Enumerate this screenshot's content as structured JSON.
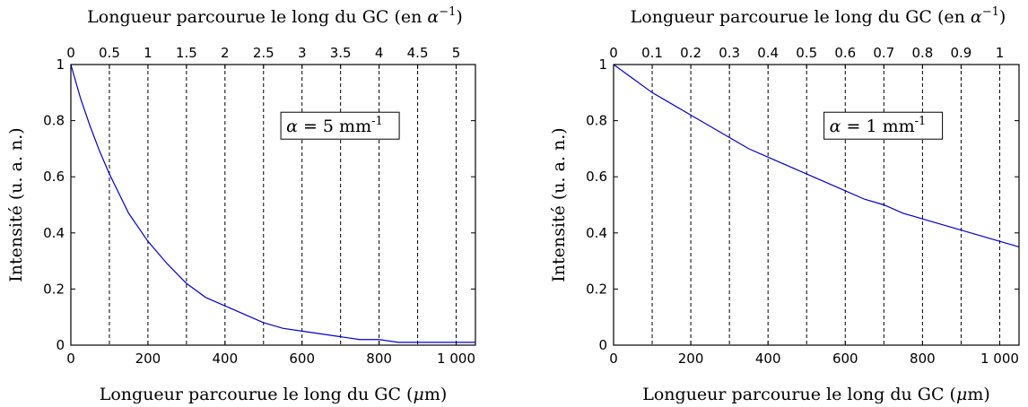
{
  "chart_data": [
    {
      "type": "line",
      "ylabel": "Intensité (u. a. n.)",
      "xlabel": "Longueur parcourue le long du GC (",
      "xlabel_symbol": "μ",
      "xlabel_unit": "m)",
      "x2label": "Longueur parcourue le long du GC (en ",
      "x2label_symbol": "α",
      "x2label_sup": "−1",
      "x2label_end": ")",
      "xlim": [
        0,
        1050
      ],
      "ylim": [
        0,
        1
      ],
      "xticks": [
        0,
        200,
        400,
        600,
        800,
        1000
      ],
      "xtick_labels": [
        "0",
        "200",
        "400",
        "600",
        "800",
        "1 000"
      ],
      "yticks": [
        0,
        0.2,
        0.4,
        0.6,
        0.8,
        1
      ],
      "ytick_labels": [
        "0",
        "0.2",
        "0.4",
        "0.6",
        "0.8",
        "1"
      ],
      "x2ticks": [
        0,
        0.5,
        1,
        1.5,
        2,
        2.5,
        3,
        3.5,
        4,
        4.5,
        5
      ],
      "x2tick_labels": [
        "0",
        "0.5",
        "1",
        "1.5",
        "2",
        "2.5",
        "3",
        "3.5",
        "4",
        "4.5",
        "5"
      ],
      "grid_x": [
        100,
        200,
        300,
        400,
        500,
        600,
        700,
        800,
        900,
        1000
      ],
      "annotation": {
        "symbol": "α",
        "text": " = 5 mm",
        "sup": "-1"
      },
      "series": [
        {
          "color": "#0000cc",
          "x": [
            0,
            25,
            50,
            75,
            100,
            125,
            150,
            175,
            200,
            250,
            300,
            350,
            400,
            450,
            500,
            550,
            600,
            650,
            700,
            750,
            800,
            850,
            900,
            950,
            1000,
            1050
          ],
          "y": [
            1,
            0.88,
            0.78,
            0.69,
            0.61,
            0.54,
            0.47,
            0.42,
            0.37,
            0.29,
            0.22,
            0.17,
            0.14,
            0.11,
            0.08,
            0.06,
            0.05,
            0.04,
            0.03,
            0.02,
            0.02,
            0.01,
            0.01,
            0.01,
            0.01,
            0.01
          ]
        }
      ]
    },
    {
      "type": "line",
      "ylabel": "Intensité (u. a. n.)",
      "xlabel": "Longueur parcourue le long du GC (",
      "xlabel_symbol": "μ",
      "xlabel_unit": "m)",
      "x2label": "Longueur parcourue le long du GC (en ",
      "x2label_symbol": "α",
      "x2label_sup": "−1",
      "x2label_end": ")",
      "xlim": [
        0,
        1050
      ],
      "ylim": [
        0,
        1
      ],
      "xticks": [
        0,
        200,
        400,
        600,
        800,
        1000
      ],
      "xtick_labels": [
        "0",
        "200",
        "400",
        "600",
        "800",
        "1 000"
      ],
      "yticks": [
        0,
        0.2,
        0.4,
        0.6,
        0.8,
        1
      ],
      "ytick_labels": [
        "0",
        "0.2",
        "0.4",
        "0.6",
        "0.8",
        "1"
      ],
      "x2ticks": [
        0,
        0.1,
        0.2,
        0.3,
        0.4,
        0.5,
        0.6,
        0.7,
        0.8,
        0.9,
        1
      ],
      "x2tick_labels": [
        "0",
        "0.1",
        "0.2",
        "0.3",
        "0.4",
        "0.5",
        "0.6",
        "0.7",
        "0.8",
        "0.9",
        "1"
      ],
      "grid_x": [
        100,
        200,
        300,
        400,
        500,
        600,
        700,
        800,
        900,
        1000
      ],
      "annotation": {
        "symbol": "α",
        "text": " = 1 mm",
        "sup": "-1"
      },
      "series": [
        {
          "color": "#0000cc",
          "x": [
            0,
            50,
            100,
            150,
            200,
            250,
            300,
            350,
            400,
            450,
            500,
            550,
            600,
            650,
            700,
            750,
            800,
            850,
            900,
            950,
            1000,
            1050
          ],
          "y": [
            1,
            0.95,
            0.9,
            0.86,
            0.82,
            0.78,
            0.74,
            0.7,
            0.67,
            0.64,
            0.61,
            0.58,
            0.55,
            0.52,
            0.5,
            0.47,
            0.45,
            0.43,
            0.41,
            0.39,
            0.37,
            0.35
          ]
        }
      ]
    }
  ]
}
